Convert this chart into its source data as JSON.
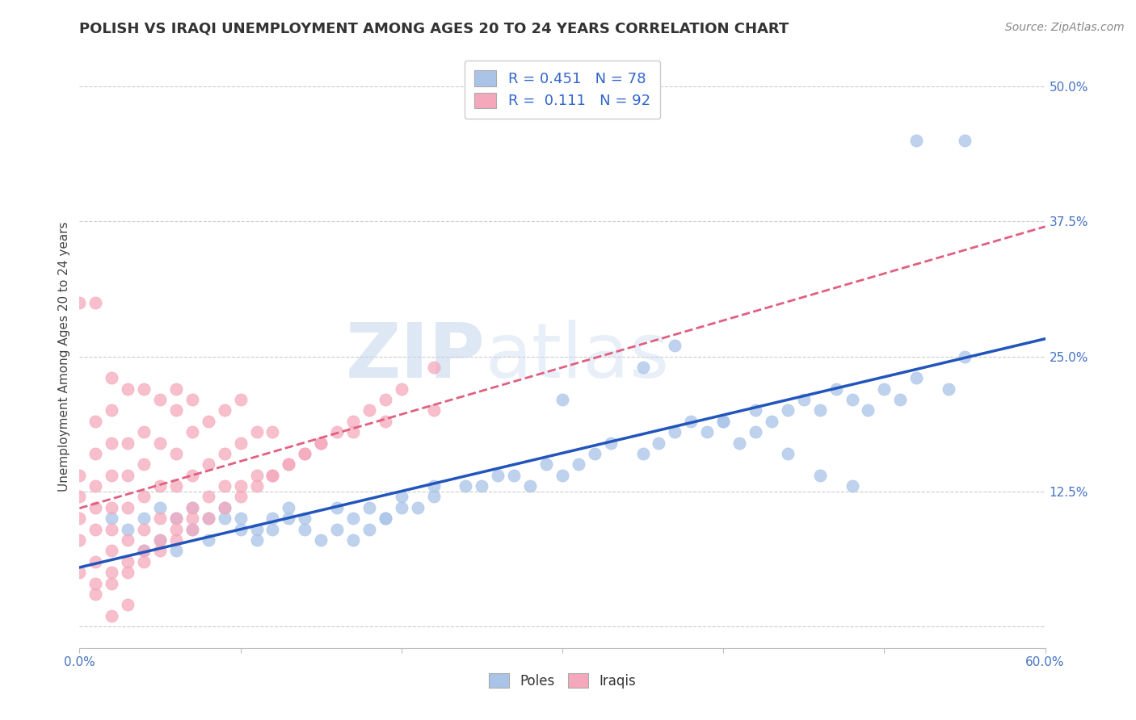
{
  "title": "POLISH VS IRAQI UNEMPLOYMENT AMONG AGES 20 TO 24 YEARS CORRELATION CHART",
  "source": "Source: ZipAtlas.com",
  "ylabel": "Unemployment Among Ages 20 to 24 years",
  "xlim": [
    0.0,
    0.6
  ],
  "ylim": [
    -0.02,
    0.52
  ],
  "xticks": [
    0.0,
    0.1,
    0.2,
    0.3,
    0.4,
    0.5,
    0.6
  ],
  "xticklabels": [
    "0.0%",
    "",
    "",
    "",
    "",
    "",
    "60.0%"
  ],
  "yticks": [
    0.0,
    0.125,
    0.25,
    0.375,
    0.5
  ],
  "yticklabels": [
    "",
    "12.5%",
    "25.0%",
    "37.5%",
    "50.0%"
  ],
  "R_poles": 0.451,
  "N_poles": 78,
  "R_iraqis": 0.111,
  "N_iraqis": 92,
  "poles_color": "#aac4e8",
  "iraqis_color": "#f5a8bc",
  "poles_line_color": "#2255bb",
  "iraqis_line_color": "#e06080",
  "watermark_zip": "ZIP",
  "watermark_atlas": "atlas",
  "background_color": "#ffffff",
  "grid_color": "#cccccc",
  "poles_x": [
    0.02,
    0.03,
    0.04,
    0.05,
    0.06,
    0.07,
    0.08,
    0.09,
    0.1,
    0.11,
    0.12,
    0.13,
    0.14,
    0.16,
    0.17,
    0.18,
    0.19,
    0.2,
    0.21,
    0.22,
    0.24,
    0.25,
    0.26,
    0.27,
    0.28,
    0.29,
    0.3,
    0.31,
    0.32,
    0.33,
    0.35,
    0.36,
    0.37,
    0.38,
    0.39,
    0.4,
    0.41,
    0.42,
    0.43,
    0.44,
    0.45,
    0.46,
    0.47,
    0.48,
    0.49,
    0.5,
    0.51,
    0.52,
    0.54,
    0.55,
    0.04,
    0.05,
    0.06,
    0.07,
    0.08,
    0.09,
    0.1,
    0.11,
    0.12,
    0.13,
    0.14,
    0.15,
    0.16,
    0.17,
    0.18,
    0.19,
    0.2,
    0.22,
    0.3,
    0.35,
    0.37,
    0.4,
    0.42,
    0.44,
    0.46,
    0.48,
    0.52,
    0.55
  ],
  "poles_y": [
    0.1,
    0.09,
    0.1,
    0.11,
    0.1,
    0.11,
    0.1,
    0.11,
    0.1,
    0.09,
    0.1,
    0.11,
    0.1,
    0.11,
    0.1,
    0.11,
    0.1,
    0.12,
    0.11,
    0.12,
    0.13,
    0.13,
    0.14,
    0.14,
    0.13,
    0.15,
    0.14,
    0.15,
    0.16,
    0.17,
    0.16,
    0.17,
    0.18,
    0.19,
    0.18,
    0.19,
    0.17,
    0.18,
    0.19,
    0.2,
    0.21,
    0.2,
    0.22,
    0.21,
    0.2,
    0.22,
    0.21,
    0.23,
    0.22,
    0.25,
    0.07,
    0.08,
    0.07,
    0.09,
    0.08,
    0.1,
    0.09,
    0.08,
    0.09,
    0.1,
    0.09,
    0.08,
    0.09,
    0.08,
    0.09,
    0.1,
    0.11,
    0.13,
    0.21,
    0.24,
    0.26,
    0.19,
    0.2,
    0.16,
    0.14,
    0.13,
    0.45,
    0.45
  ],
  "iraqis_x": [
    0.0,
    0.0,
    0.0,
    0.0,
    0.0,
    0.01,
    0.01,
    0.01,
    0.01,
    0.01,
    0.01,
    0.02,
    0.02,
    0.02,
    0.02,
    0.02,
    0.02,
    0.02,
    0.03,
    0.03,
    0.03,
    0.03,
    0.03,
    0.04,
    0.04,
    0.04,
    0.04,
    0.04,
    0.05,
    0.05,
    0.05,
    0.05,
    0.06,
    0.06,
    0.06,
    0.06,
    0.06,
    0.07,
    0.07,
    0.07,
    0.07,
    0.08,
    0.08,
    0.08,
    0.09,
    0.09,
    0.09,
    0.1,
    0.1,
    0.1,
    0.11,
    0.11,
    0.12,
    0.12,
    0.13,
    0.14,
    0.15,
    0.16,
    0.17,
    0.18,
    0.19,
    0.2,
    0.22,
    0.01,
    0.01,
    0.02,
    0.02,
    0.03,
    0.03,
    0.04,
    0.04,
    0.05,
    0.05,
    0.06,
    0.06,
    0.07,
    0.07,
    0.08,
    0.09,
    0.1,
    0.11,
    0.12,
    0.13,
    0.14,
    0.15,
    0.17,
    0.19,
    0.22,
    0.0,
    0.01,
    0.02,
    0.03
  ],
  "iraqis_y": [
    0.05,
    0.08,
    0.1,
    0.12,
    0.14,
    0.06,
    0.09,
    0.11,
    0.13,
    0.16,
    0.19,
    0.07,
    0.09,
    0.11,
    0.14,
    0.17,
    0.2,
    0.23,
    0.08,
    0.11,
    0.14,
    0.17,
    0.22,
    0.09,
    0.12,
    0.15,
    0.18,
    0.22,
    0.1,
    0.13,
    0.17,
    0.21,
    0.1,
    0.13,
    0.16,
    0.2,
    0.22,
    0.11,
    0.14,
    0.18,
    0.21,
    0.12,
    0.15,
    0.19,
    0.13,
    0.16,
    0.2,
    0.13,
    0.17,
    0.21,
    0.14,
    0.18,
    0.14,
    0.18,
    0.15,
    0.16,
    0.17,
    0.18,
    0.19,
    0.2,
    0.21,
    0.22,
    0.24,
    0.03,
    0.04,
    0.04,
    0.05,
    0.05,
    0.06,
    0.06,
    0.07,
    0.07,
    0.08,
    0.08,
    0.09,
    0.09,
    0.1,
    0.1,
    0.11,
    0.12,
    0.13,
    0.14,
    0.15,
    0.16,
    0.17,
    0.18,
    0.19,
    0.2,
    0.3,
    0.3,
    0.01,
    0.02
  ]
}
